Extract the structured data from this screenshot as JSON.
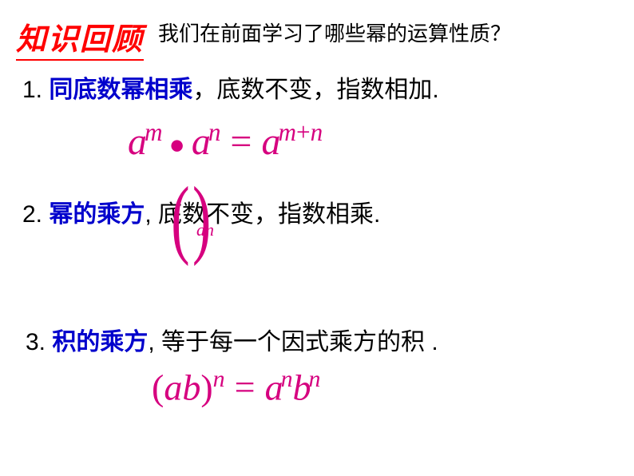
{
  "header": {
    "title": "知识回顾",
    "subtitle": "我们在前面学习了哪些幂的运算性质？"
  },
  "items": {
    "item1": {
      "num": "1. ",
      "blue": "同底数幂相乘",
      "rest": "，底数不变，指数相加."
    },
    "item2": {
      "num": "2. ",
      "blue": "幂的乘方",
      "rest": ", 底数不变，指数相乘."
    },
    "item3": {
      "num": "3. ",
      "blue": "积的乘方",
      "rest": ", 等于每一个因式乘方的积 ."
    }
  },
  "formulas": {
    "f1": {
      "a1": "a",
      "m": "m",
      "dot": "●",
      "a2": "a",
      "n": "n",
      "eq": "=",
      "a3": "a",
      "mn": "m",
      "plus": "+",
      "n2": "n"
    },
    "f3": {
      "lp": "(",
      "ab": "ab",
      "rp": ")",
      "n": "n",
      "eq": "=",
      "a": "a",
      "n2": "n",
      "b": "b",
      "n3": "n"
    }
  },
  "overlay": {
    "parens": "( )",
    "an": "an"
  },
  "colors": {
    "red": "#ff0000",
    "blue": "#0000cc",
    "magenta": "#d6007f",
    "black": "#000000",
    "bg": "#ffffff"
  }
}
